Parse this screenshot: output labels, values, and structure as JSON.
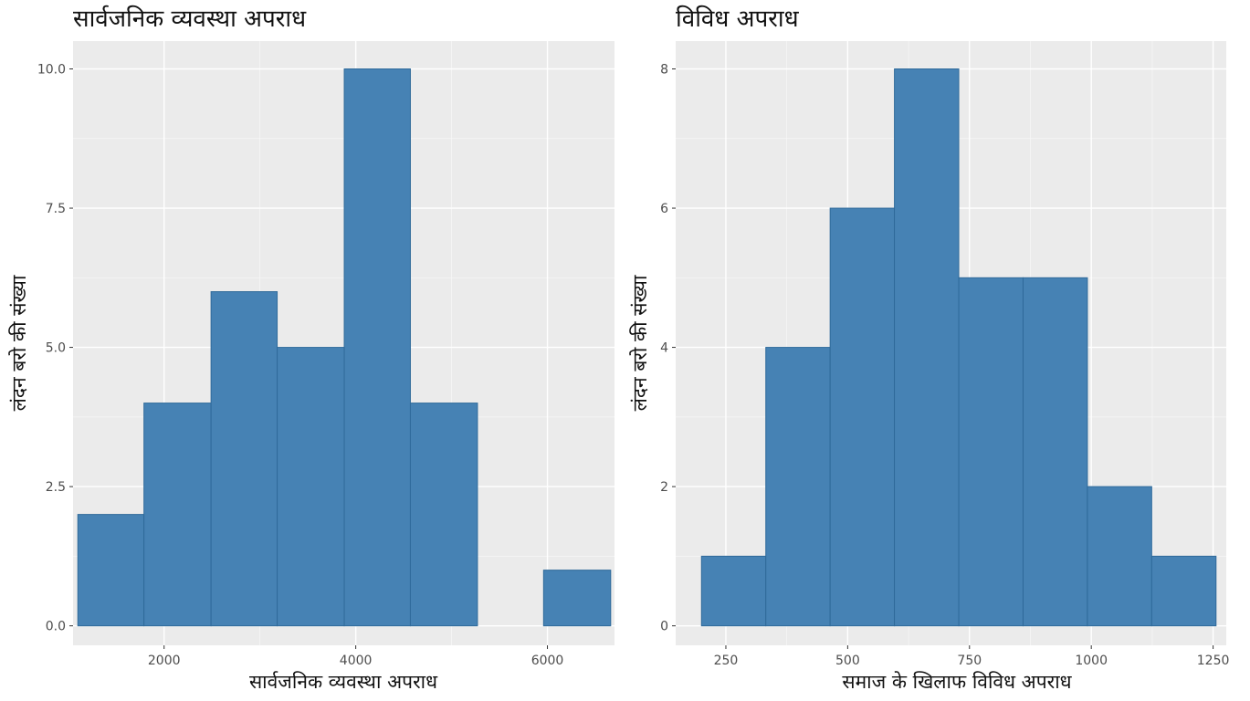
{
  "chart_data": [
    {
      "type": "bar",
      "histogram": true,
      "title": "सार्वजनिक व्यवस्था अपराध",
      "xlabel": "सार्वजनिक व्यवस्था अपराध",
      "ylabel": "लंदन बरो की संख्या",
      "bins": [
        {
          "x0": 1100,
          "x1": 1790,
          "count": 2
        },
        {
          "x0": 1790,
          "x1": 2490,
          "count": 4
        },
        {
          "x0": 2490,
          "x1": 3180,
          "count": 6
        },
        {
          "x0": 3180,
          "x1": 3880,
          "count": 5
        },
        {
          "x0": 3880,
          "x1": 4570,
          "count": 10
        },
        {
          "x0": 4570,
          "x1": 5270,
          "count": 4
        },
        {
          "x0": 5270,
          "x1": 5960,
          "count": 0
        },
        {
          "x0": 5960,
          "x1": 6660,
          "count": 1
        }
      ],
      "xlim": [
        1050,
        6700
      ],
      "ylim": [
        -0.35,
        10.5
      ],
      "xticks": [
        2000,
        4000,
        6000
      ],
      "xtick_labels": [
        "2000",
        "4000",
        "6000"
      ],
      "yticks": [
        0,
        2.5,
        5,
        7.5,
        10
      ],
      "ytick_labels": [
        "0.0",
        "2.5",
        "5.0",
        "7.5",
        "10.0"
      ],
      "grid": true,
      "fill_color": "#4682b4",
      "panel_color": "#ebebeb"
    },
    {
      "type": "bar",
      "histogram": true,
      "title": "विविध अपराध",
      "xlabel": "समाज के खिलाफ विविध अपराध",
      "ylabel": "लंदन बरो की संख्या",
      "bins": [
        {
          "x0": 200,
          "x1": 332,
          "count": 1
        },
        {
          "x0": 332,
          "x1": 464,
          "count": 4
        },
        {
          "x0": 464,
          "x1": 596,
          "count": 6
        },
        {
          "x0": 596,
          "x1": 728,
          "count": 8
        },
        {
          "x0": 728,
          "x1": 860,
          "count": 5
        },
        {
          "x0": 860,
          "x1": 992,
          "count": 5
        },
        {
          "x0": 992,
          "x1": 1124,
          "count": 2
        },
        {
          "x0": 1124,
          "x1": 1256,
          "count": 1
        }
      ],
      "xlim": [
        147,
        1277
      ],
      "ylim": [
        -0.28,
        8.4
      ],
      "xticks": [
        250,
        500,
        750,
        1000,
        1250
      ],
      "xtick_labels": [
        "250",
        "500",
        "750",
        "1000",
        "1250"
      ],
      "yticks": [
        0,
        2,
        4,
        6,
        8
      ],
      "ytick_labels": [
        "0",
        "2",
        "4",
        "6",
        "8"
      ],
      "grid": true,
      "fill_color": "#4682b4",
      "panel_color": "#ebebeb"
    }
  ]
}
